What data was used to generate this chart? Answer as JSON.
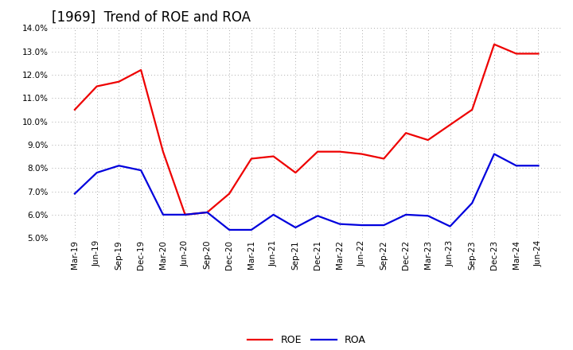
{
  "title": "[1969]  Trend of ROE and ROA",
  "labels": [
    "Mar-19",
    "Jun-19",
    "Sep-19",
    "Dec-19",
    "Mar-20",
    "Jun-20",
    "Sep-20",
    "Dec-20",
    "Mar-21",
    "Jun-21",
    "Sep-21",
    "Dec-21",
    "Mar-22",
    "Jun-22",
    "Sep-22",
    "Dec-22",
    "Mar-23",
    "Jun-23",
    "Sep-23",
    "Dec-23",
    "Mar-24",
    "Jun-24"
  ],
  "roe": [
    10.5,
    11.5,
    11.7,
    12.2,
    8.7,
    6.0,
    6.1,
    6.9,
    8.4,
    8.5,
    7.8,
    8.7,
    8.7,
    8.6,
    8.4,
    9.5,
    9.2,
    9.85,
    10.5,
    13.3,
    12.9,
    12.9
  ],
  "roa": [
    6.9,
    7.8,
    8.1,
    7.9,
    6.0,
    6.0,
    6.1,
    5.35,
    5.35,
    6.0,
    5.45,
    5.95,
    5.6,
    5.55,
    5.55,
    6.0,
    5.95,
    5.5,
    6.5,
    8.6,
    8.1,
    8.1
  ],
  "roe_color": "#ee0000",
  "roa_color": "#0000dd",
  "ylim_min": 5.0,
  "ylim_max": 14.0,
  "yticks": [
    5.0,
    6.0,
    7.0,
    8.0,
    9.0,
    10.0,
    11.0,
    12.0,
    13.0,
    14.0
  ],
  "legend_roe": "ROE",
  "legend_roa": "ROA",
  "background_color": "#ffffff",
  "grid_color": "#aaaaaa",
  "linewidth": 1.6,
  "title_fontsize": 12,
  "tick_fontsize": 7.5
}
